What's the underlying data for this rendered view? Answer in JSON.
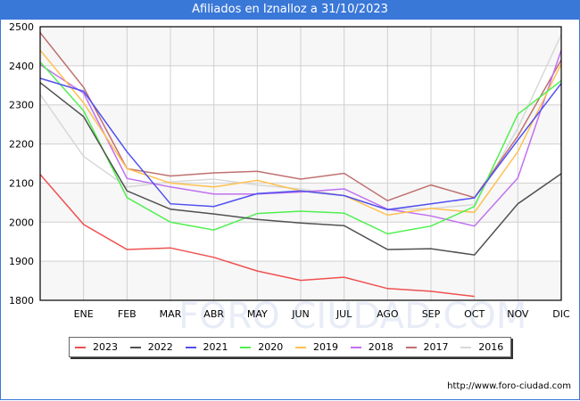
{
  "title": "Afiliados en Iznalloz a 31/10/2023",
  "footer": "http://www.foro-ciudad.com",
  "watermark": "FORO CIUDAD.COM",
  "chart_data": {
    "type": "line",
    "title": "Afiliados en Iznalloz a 31/10/2023",
    "xlabel": "",
    "ylabel": "",
    "x_ticks": [
      "ENE",
      "FEB",
      "MAR",
      "ABR",
      "MAY",
      "JUN",
      "JUL",
      "AGO",
      "SEP",
      "OCT",
      "NOV",
      "DIC"
    ],
    "y_ticks": [
      1800,
      1900,
      2000,
      2100,
      2200,
      2300,
      2400,
      2500
    ],
    "ylim": [
      1800,
      2500
    ],
    "grid": true,
    "legend_position": "bottom",
    "x_note": "first point of each series is the prior December (start), followed by ENE..DIC",
    "series": [
      {
        "name": "2023",
        "color": "#f05050",
        "values": [
          2122,
          1994,
          1930,
          1934,
          1910,
          1875,
          1851,
          1859,
          1830,
          1823,
          1810
        ]
      },
      {
        "name": "2022",
        "color": "#505050",
        "values": [
          2357,
          2270,
          2080,
          2033,
          2021,
          2007,
          1998,
          1991,
          1930,
          1932,
          1916,
          2047,
          2124
        ]
      },
      {
        "name": "2021",
        "color": "#5050f0",
        "values": [
          2368,
          2335,
          2180,
          2047,
          2040,
          2073,
          2080,
          2068,
          2032,
          2047,
          2062,
          2210,
          2355
        ]
      },
      {
        "name": "2020",
        "color": "#50f050",
        "values": [
          2410,
          2285,
          2063,
          2000,
          1980,
          2022,
          2028,
          2023,
          1970,
          1990,
          2040,
          2276,
          2362
        ]
      },
      {
        "name": "2019",
        "color": "#ffc050",
        "values": [
          2440,
          2305,
          2137,
          2100,
          2090,
          2107,
          2080,
          2068,
          2018,
          2035,
          2025,
          2180,
          2405
        ]
      },
      {
        "name": "2018",
        "color": "#c070f0",
        "values": [
          2403,
          2330,
          2112,
          2090,
          2072,
          2072,
          2077,
          2085,
          2033,
          2016,
          1990,
          2113,
          2440
        ]
      },
      {
        "name": "2017",
        "color": "#c07070",
        "values": [
          2485,
          2345,
          2137,
          2118,
          2126,
          2130,
          2110,
          2125,
          2055,
          2095,
          2063,
          2220,
          2415
        ]
      },
      {
        "name": "2016",
        "color": "#d8d8d8",
        "values": [
          2327,
          2168,
          2090,
          2103,
          2110,
          2095,
          2085,
          2068,
          2032,
          2035,
          2045,
          2240,
          2480
        ]
      }
    ]
  }
}
